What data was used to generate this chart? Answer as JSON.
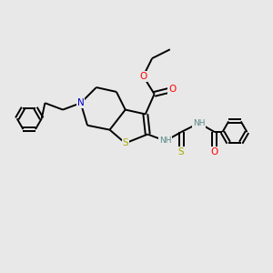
{
  "background_color": "#e8e8e8",
  "atom_colors": {
    "C": "#000000",
    "N": "#0000cc",
    "O": "#ff0000",
    "S": "#aaaa00",
    "H": "#5a8a8a"
  },
  "bond_color": "#000000",
  "bond_width": 1.4,
  "figsize": [
    3.0,
    3.0
  ],
  "dpi": 100,
  "xlim": [
    0,
    12
  ],
  "ylim": [
    0,
    12
  ]
}
